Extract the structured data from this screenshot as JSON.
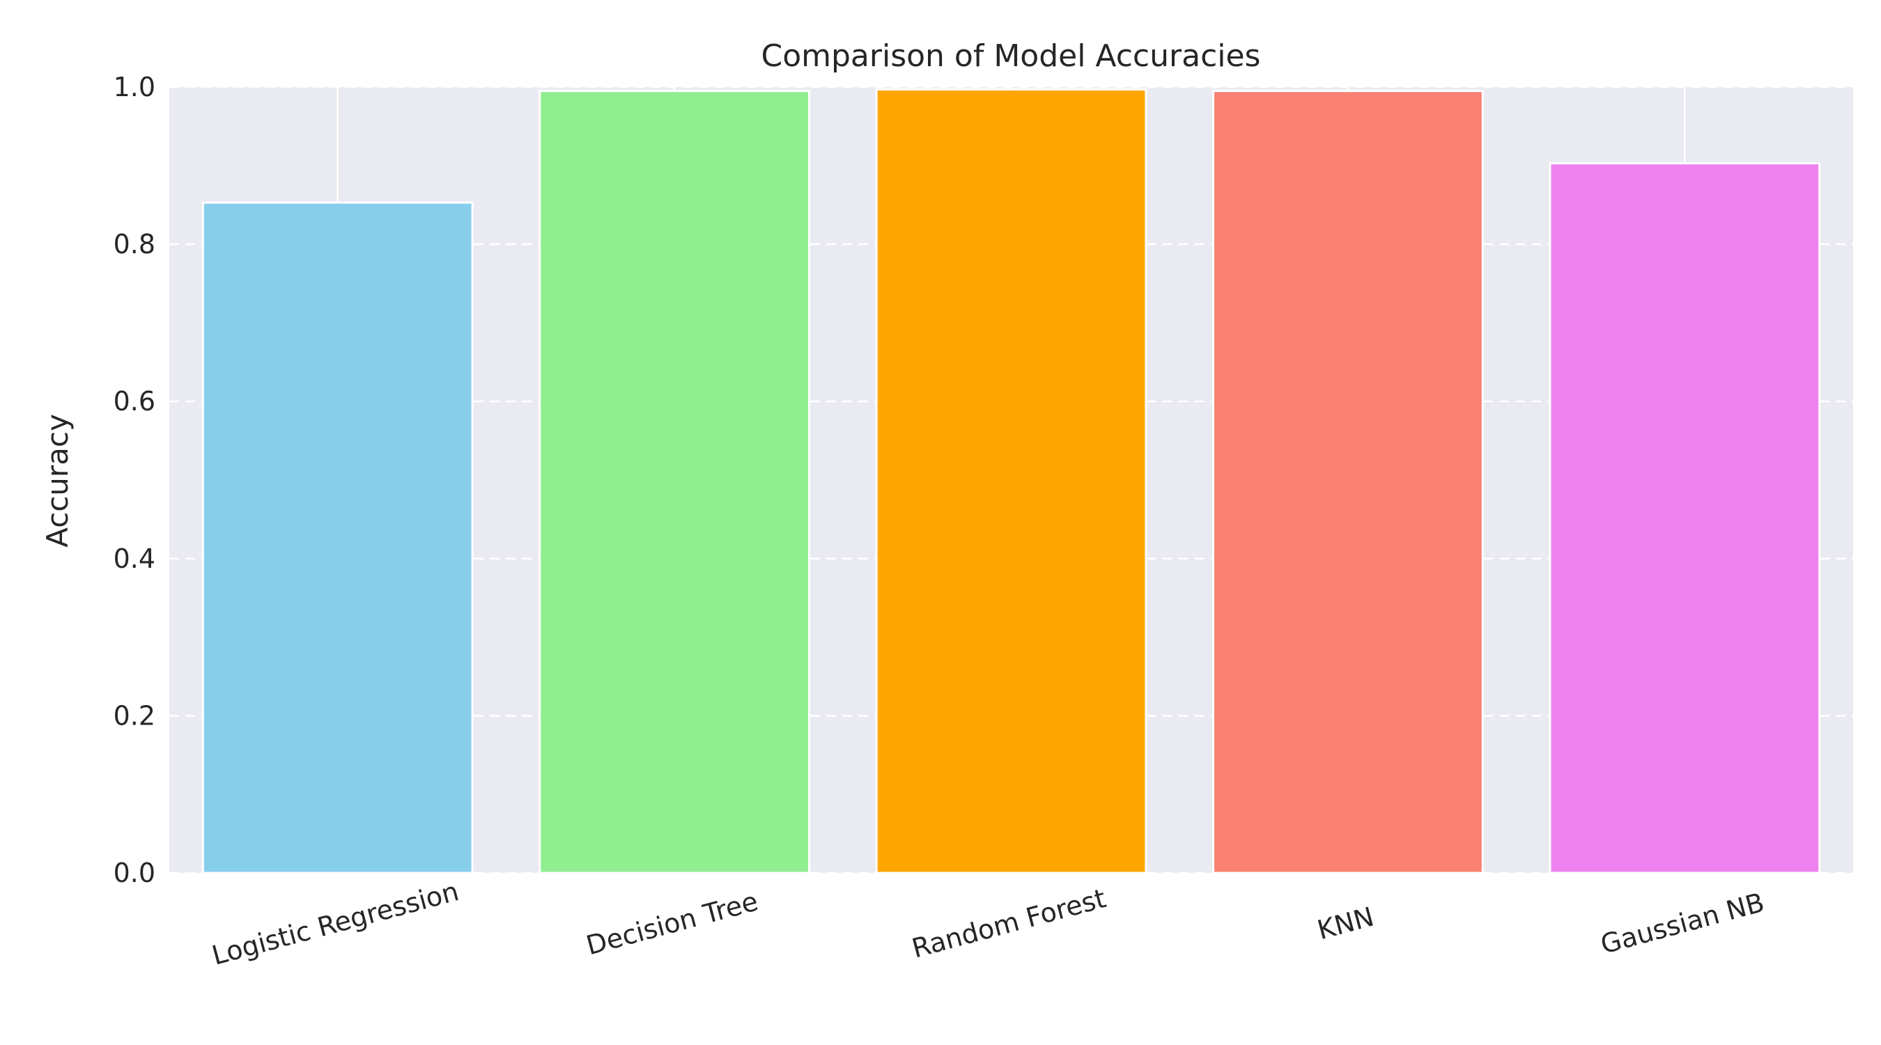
{
  "chart_data": {
    "type": "bar",
    "title": "Comparison of Model Accuracies",
    "xlabel": "",
    "ylabel": "Accuracy",
    "categories": [
      "Logistic Regression",
      "Decision Tree",
      "Random Forest",
      "KNN",
      "Gaussian NB"
    ],
    "values": [
      0.853,
      0.995,
      0.997,
      0.995,
      0.903
    ],
    "colors": [
      "#87CEEB",
      "#90EE90",
      "#FFA500",
      "#FA8072",
      "#EE82EE"
    ],
    "ylim": [
      0,
      1.0
    ],
    "yticks": [
      "0.0",
      "0.2",
      "0.4",
      "0.6",
      "0.8",
      "1.0"
    ],
    "ytick_values": [
      0,
      0.2,
      0.4,
      0.6,
      0.8,
      1.0
    ],
    "grid": {
      "y": true,
      "y_style": "dashed",
      "x": true,
      "x_style": "solid"
    },
    "background_color": "#EAEAF2",
    "xtick_rotation_deg": 15,
    "legend": "none"
  }
}
